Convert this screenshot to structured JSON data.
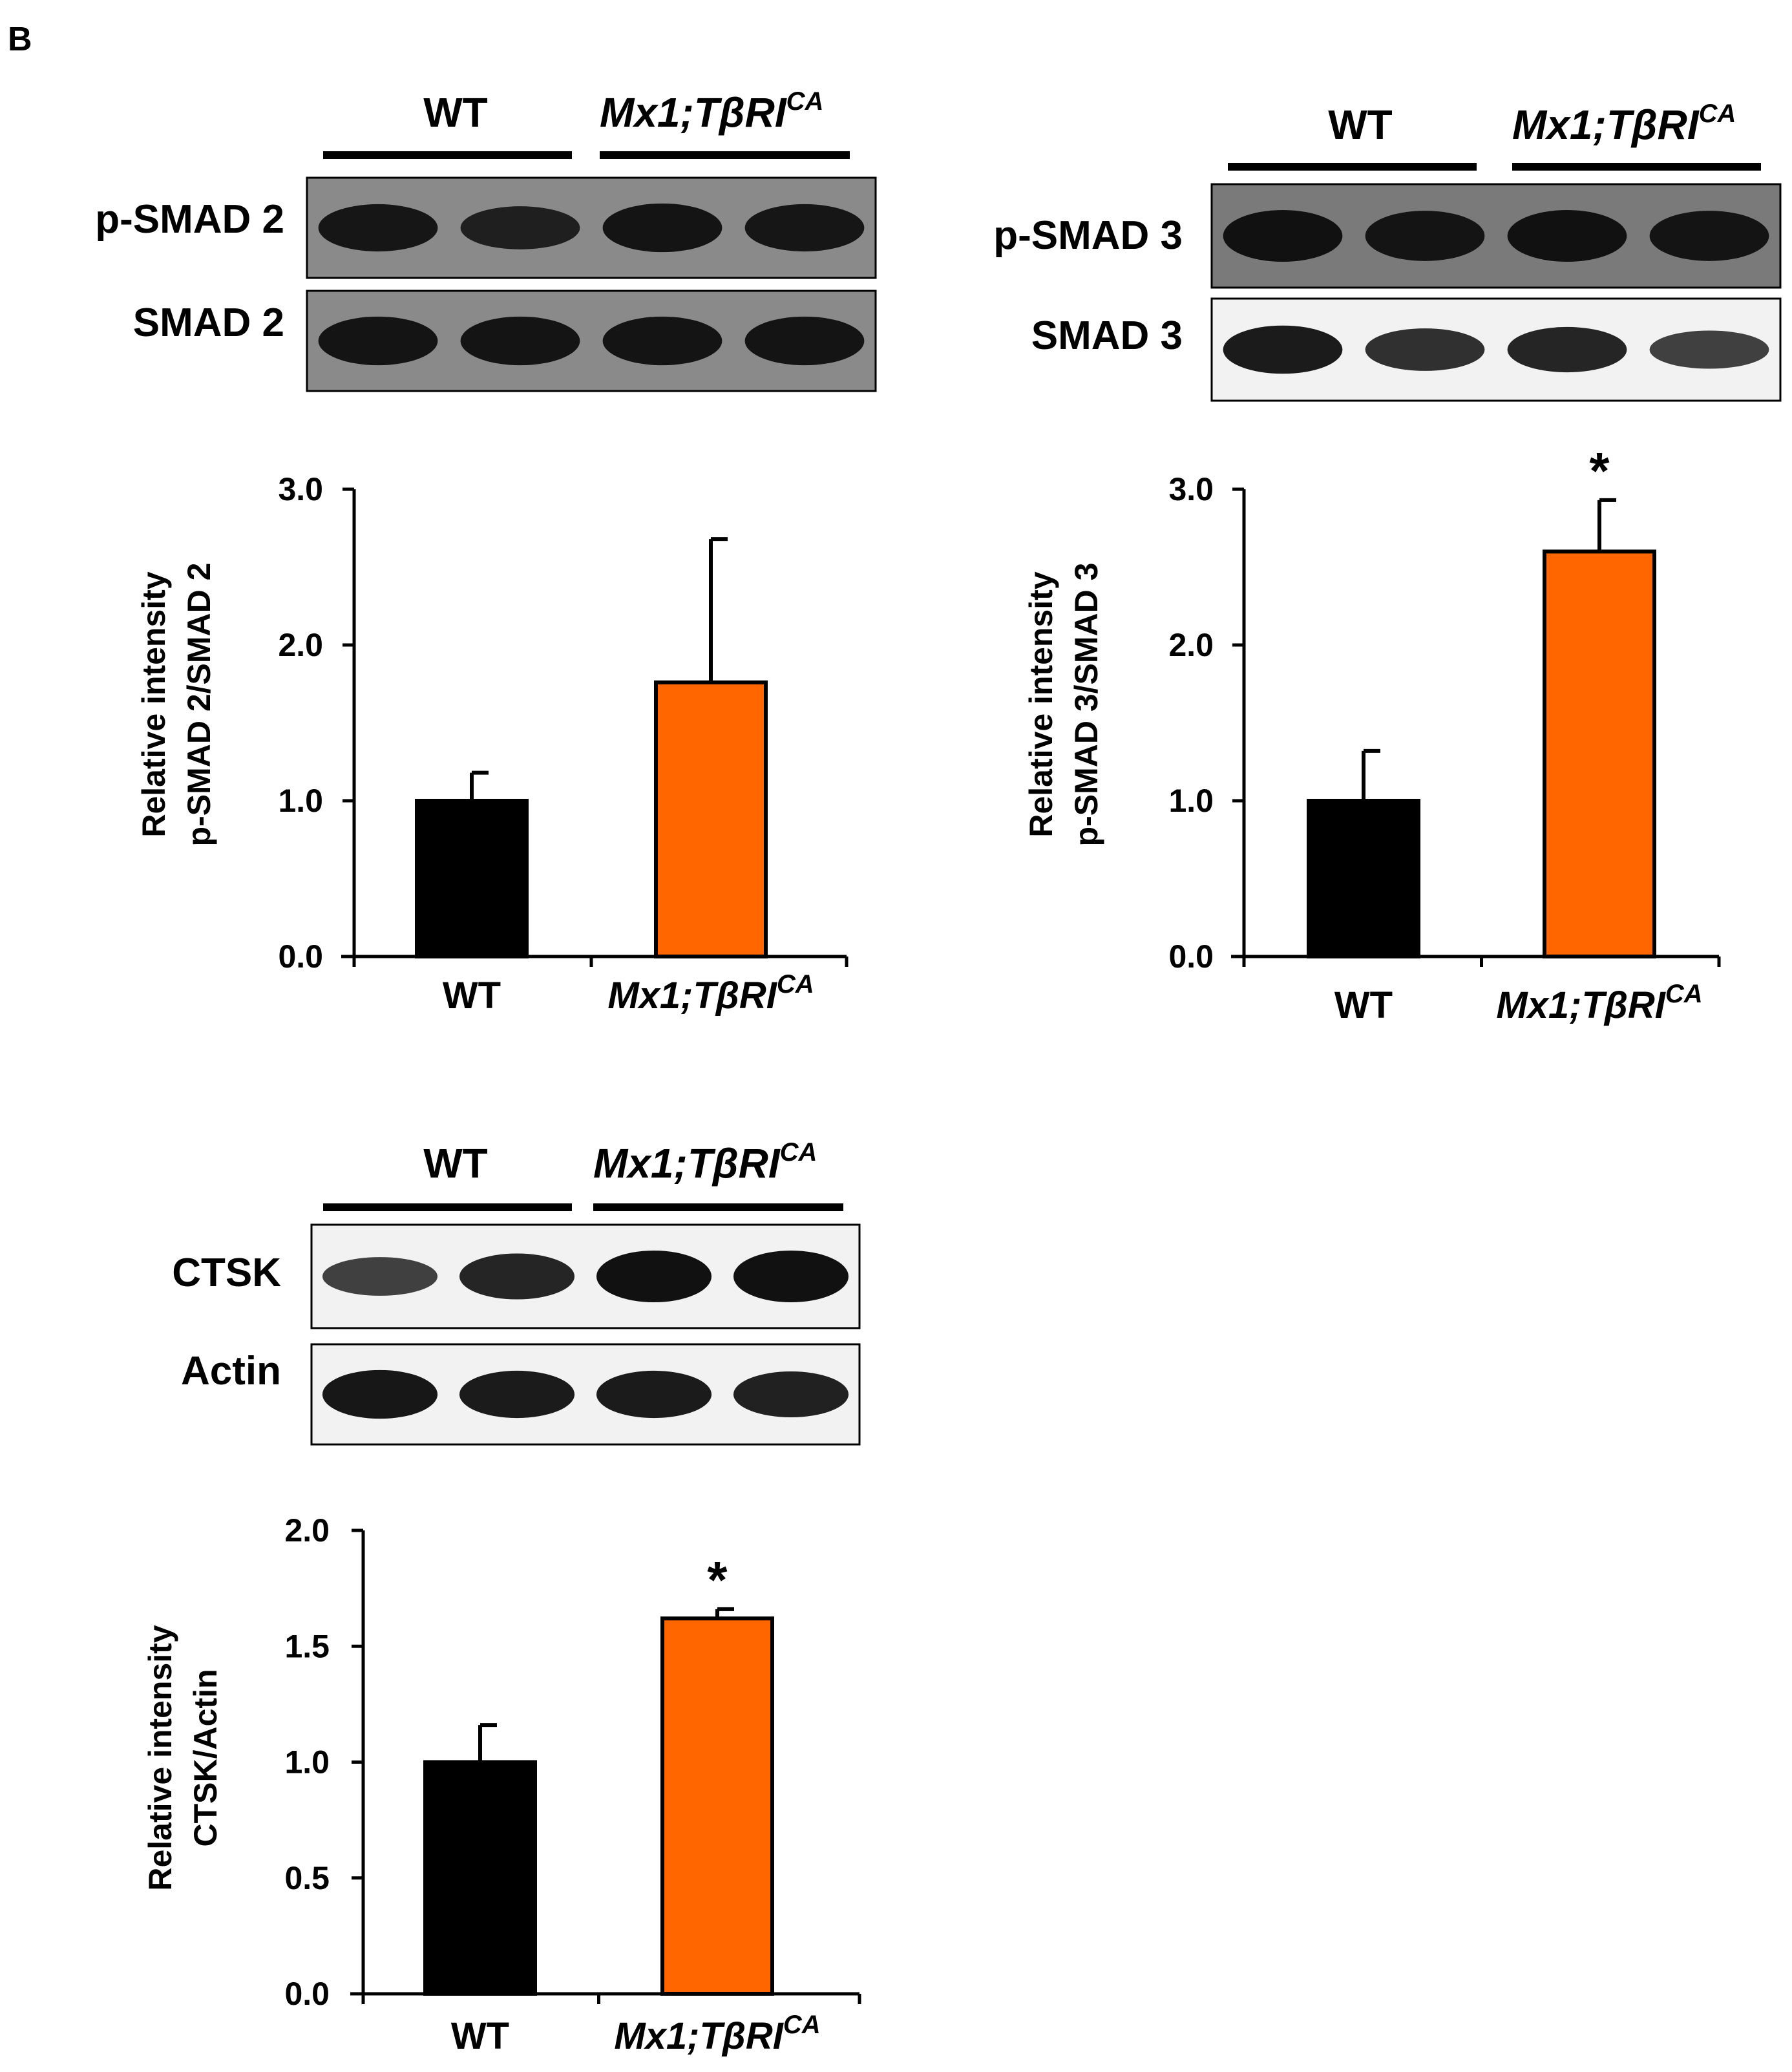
{
  "panel_label": "B",
  "blots": [
    {
      "id": "smad2",
      "group_labels": {
        "wt": "WT",
        "mut_main": "Mx1;TβRI",
        "mut_sup": "CA"
      },
      "rows": [
        {
          "label": "p-SMAD 2",
          "bands": [
            0.9,
            0.75,
            0.95,
            0.9
          ]
        },
        {
          "label": "SMAD 2",
          "bands": [
            0.95,
            0.95,
            0.95,
            0.95
          ]
        }
      ]
    },
    {
      "id": "smad3",
      "group_labels": {
        "wt": "WT",
        "mut_main": "Mx1;TβRI",
        "mut_sup": "CA"
      },
      "rows": [
        {
          "label": "p-SMAD 3",
          "bands": [
            1.0,
            0.95,
            1.0,
            0.95
          ]
        },
        {
          "label": "SMAD 3",
          "bands": [
            0.9,
            0.7,
            0.8,
            0.55
          ]
        }
      ]
    },
    {
      "id": "ctsk",
      "group_labels": {
        "wt": "WT",
        "mut_main": "Mx1;TβRI",
        "mut_sup": "CA"
      },
      "rows": [
        {
          "label": "CTSK",
          "bands": [
            0.55,
            0.8,
            1.0,
            1.0
          ]
        },
        {
          "label": "Actin",
          "bands": [
            0.95,
            0.9,
            0.9,
            0.85
          ]
        }
      ]
    }
  ],
  "chart_data": [
    {
      "type": "bar",
      "title": "",
      "ylabel_line1": "Relative intensity",
      "ylabel_line2": "p-SMAD 2/SMAD 2",
      "categories": [
        "WT",
        "Mx1;TβRI"
      ],
      "category_superscripts": [
        "",
        "CA"
      ],
      "values": [
        1.0,
        1.76
      ],
      "errors": [
        0.18,
        0.92
      ],
      "significance": [
        "",
        ""
      ],
      "ylim": [
        0,
        3.0
      ],
      "yticks": [
        "0.0",
        "1.0",
        "2.0",
        "3.0"
      ],
      "colors": [
        "#000000",
        "#ff6600"
      ]
    },
    {
      "type": "bar",
      "title": "",
      "ylabel_line1": "Relative intensity",
      "ylabel_line2": "p-SMAD 3/SMAD 3",
      "categories": [
        "WT",
        "Mx1;TβRI"
      ],
      "category_superscripts": [
        "",
        "CA"
      ],
      "values": [
        1.0,
        2.6
      ],
      "errors": [
        0.32,
        0.33
      ],
      "significance": [
        "",
        "*"
      ],
      "ylim": [
        0,
        3.0
      ],
      "yticks": [
        "0.0",
        "1.0",
        "2.0",
        "3.0"
      ],
      "colors": [
        "#000000",
        "#ff6600"
      ]
    },
    {
      "type": "bar",
      "title": "",
      "ylabel_line1": "Relative intensity",
      "ylabel_line2": "CTSK/Actin",
      "categories": [
        "WT",
        "Mx1;TβRI"
      ],
      "category_superscripts": [
        "",
        "CA"
      ],
      "values": [
        1.0,
        1.62
      ],
      "errors": [
        0.16,
        0.04
      ],
      "significance": [
        "",
        "*"
      ],
      "ylim": [
        0,
        2.0
      ],
      "yticks": [
        "0.0",
        "0.5",
        "1.0",
        "1.5",
        "2.0"
      ],
      "colors": [
        "#000000",
        "#ff6600"
      ]
    }
  ]
}
